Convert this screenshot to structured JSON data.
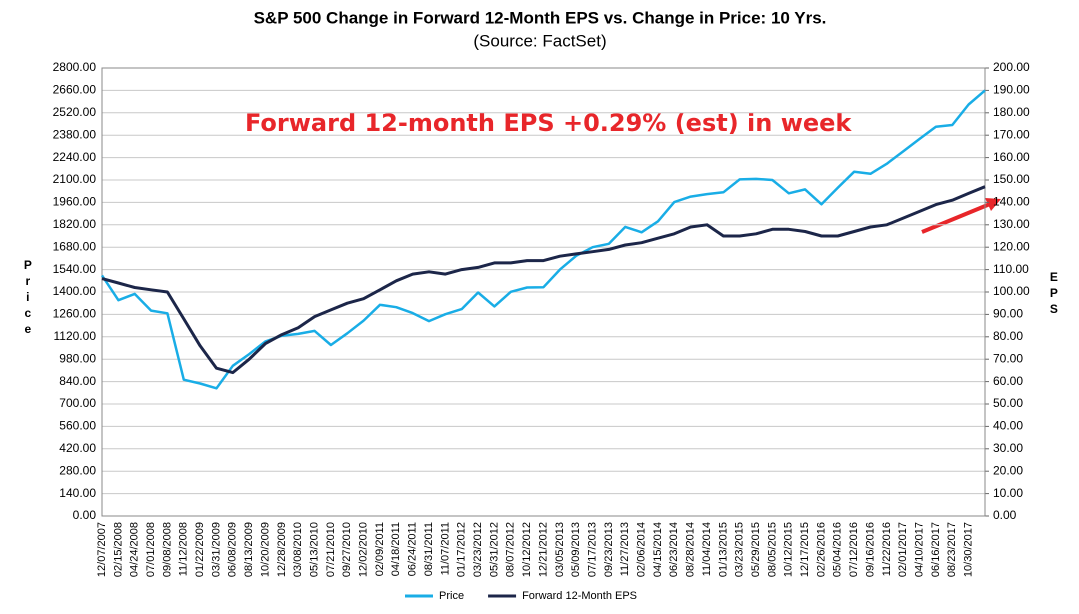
{
  "chart_data": {
    "type": "line",
    "title": "S&P 500 Change in Forward 12-Month EPS vs. Change in Price: 10 Yrs.",
    "subtitle": "(Source: FactSet)",
    "annotation": "Forward 12-month EPS +0.29% (est) in week",
    "y_label": "Price",
    "y2_label": "EPS",
    "categories": [
      "12/07/2007",
      "02/15/2008",
      "04/24/2008",
      "07/01/2008",
      "09/08/2008",
      "11/12/2008",
      "01/22/2009",
      "03/31/2009",
      "06/08/2009",
      "08/13/2009",
      "10/20/2009",
      "12/28/2009",
      "03/08/2010",
      "05/13/2010",
      "07/21/2010",
      "09/27/2010",
      "12/02/2010",
      "02/09/2011",
      "04/18/2011",
      "06/24/2011",
      "08/31/2011",
      "11/07/2011",
      "01/17/2012",
      "03/23/2012",
      "05/31/2012",
      "08/07/2012",
      "10/12/2012",
      "12/21/2012",
      "03/05/2013",
      "05/09/2013",
      "07/17/2013",
      "09/23/2013",
      "11/27/2013",
      "02/06/2014",
      "04/15/2014",
      "06/23/2014",
      "08/28/2014",
      "11/04/2014",
      "01/13/2015",
      "03/23/2015",
      "05/29/2015",
      "08/05/2015",
      "10/12/2015",
      "12/17/2015",
      "02/26/2016",
      "05/04/2016",
      "07/12/2016",
      "09/16/2016",
      "11/22/2016",
      "02/01/2017",
      "04/10/2017",
      "06/16/2017",
      "08/23/2017",
      "10/30/2017",
      null
    ],
    "series": [
      {
        "name": "Price",
        "color": "#19ade6",
        "axis": "y",
        "values": [
          1504,
          1349,
          1388,
          1284,
          1267,
          852,
          828,
          798,
          939,
          1012,
          1091,
          1127,
          1138,
          1157,
          1069,
          1142,
          1221,
          1320,
          1305,
          1268,
          1218,
          1261,
          1293,
          1397,
          1310,
          1401,
          1428,
          1430,
          1540,
          1626,
          1680,
          1701,
          1807,
          1773,
          1842,
          1962,
          1996,
          2012,
          2023,
          2104,
          2107,
          2100,
          2017,
          2041,
          1948,
          2051,
          2152,
          2139,
          2202,
          2279,
          2357,
          2433,
          2444,
          2572,
          2660
        ]
      },
      {
        "name": "Forward 12-Month EPS",
        "color": "#1c2649",
        "axis": "y2",
        "values": [
          106,
          104,
          102,
          101,
          100,
          88,
          76,
          66,
          64,
          70,
          77,
          81,
          84,
          89,
          92,
          95,
          97,
          101,
          105,
          108,
          109,
          108,
          110,
          111,
          113,
          113,
          114,
          114,
          116,
          117,
          118,
          119,
          121,
          122,
          124,
          126,
          129,
          130,
          125,
          125,
          126,
          128,
          128,
          127,
          125,
          125,
          127,
          129,
          130,
          133,
          136,
          139,
          141,
          144,
          147
        ]
      }
    ],
    "ylim": [
      0,
      2800
    ],
    "yticks": [
      {
        "value": 0,
        "label": "0.00"
      },
      {
        "value": 140,
        "label": "140.00"
      },
      {
        "value": 280,
        "label": "280.00"
      },
      {
        "value": 420,
        "label": "420.00"
      },
      {
        "value": 560,
        "label": "560.00"
      },
      {
        "value": 700,
        "label": "700.00"
      },
      {
        "value": 840,
        "label": "840.00"
      },
      {
        "value": 980,
        "label": "980.00"
      },
      {
        "value": 1120,
        "label": "1120.00"
      },
      {
        "value": 1260,
        "label": "1260.00"
      },
      {
        "value": 1400,
        "label": "1400.00"
      },
      {
        "value": 1540,
        "label": "1540.00"
      },
      {
        "value": 1680,
        "label": "1680.00"
      },
      {
        "value": 1820,
        "label": "1820.00"
      },
      {
        "value": 1960,
        "label": "1960.00"
      },
      {
        "value": 2100,
        "label": "2100.00"
      },
      {
        "value": 2240,
        "label": "2240.00"
      },
      {
        "value": 2380,
        "label": "2380.00"
      },
      {
        "value": 2520,
        "label": "2520.00"
      },
      {
        "value": 2660,
        "label": "2660.00"
      },
      {
        "value": 2800,
        "label": "2800.00"
      }
    ],
    "y2lim": [
      0,
      200
    ],
    "y2ticks": [
      {
        "value": 0,
        "label": "0.00"
      },
      {
        "value": 10,
        "label": "10.00"
      },
      {
        "value": 20,
        "label": "20.00"
      },
      {
        "value": 30,
        "label": "30.00"
      },
      {
        "value": 40,
        "label": "40.00"
      },
      {
        "value": 50,
        "label": "50.00"
      },
      {
        "value": 60,
        "label": "60.00"
      },
      {
        "value": 70,
        "label": "70.00"
      },
      {
        "value": 80,
        "label": "80.00"
      },
      {
        "value": 90,
        "label": "90.00"
      },
      {
        "value": 100,
        "label": "100.00"
      },
      {
        "value": 110,
        "label": "110.00"
      },
      {
        "value": 120,
        "label": "120.00"
      },
      {
        "value": 130,
        "label": "130.00"
      },
      {
        "value": 140,
        "label": "140.00"
      },
      {
        "value": 150,
        "label": "150.00"
      },
      {
        "value": 160,
        "label": "160.00"
      },
      {
        "value": 170,
        "label": "170.00"
      },
      {
        "value": 180,
        "label": "180.00"
      },
      {
        "value": 190,
        "label": "190.00"
      },
      {
        "value": 200,
        "label": "200.00"
      }
    ],
    "grid": true,
    "legend": "bottom"
  }
}
